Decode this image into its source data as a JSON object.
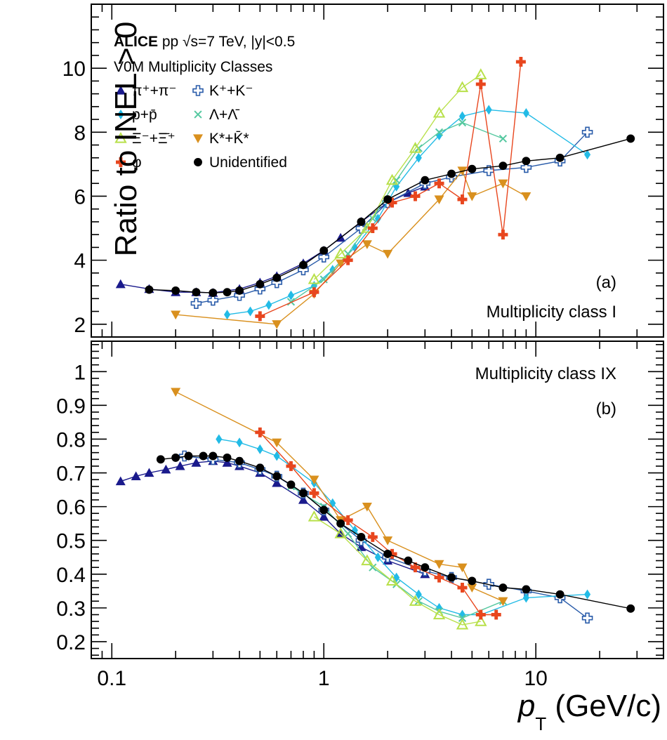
{
  "header": {
    "line1_bold": "ALICE",
    "line1_rest": " pp √s=7 TeV, |y|<0.5",
    "line2": "V0M Multiplicity Classes"
  },
  "y_axis_title": "Ratio to INEL > 0",
  "x_axis_title_p": "p",
  "x_axis_title_sub": "T",
  "x_axis_title_unit": " (GeV/c)",
  "legend": [
    {
      "label": "π⁺+π⁻",
      "color": "#1a1a8c",
      "marker": "triangle"
    },
    {
      "label": "K⁺+K⁻",
      "color": "#2a5caa",
      "marker": "open-cross"
    },
    {
      "label": "p+p̄",
      "color": "#22bbe6",
      "marker": "diamond"
    },
    {
      "label": "Λ+Λ̄",
      "color": "#55c8a0",
      "marker": "x"
    },
    {
      "label": "Ξ⁻+Ξ̄⁺",
      "color": "#b8e04a",
      "marker": "open-triangle"
    },
    {
      "label": "K*+K̄*",
      "color": "#d9901e",
      "marker": "triangle-down"
    },
    {
      "label": "φ",
      "color": "#e8461e",
      "marker": "cross"
    },
    {
      "label": "Unidentified",
      "color": "#000000",
      "marker": "circle"
    }
  ],
  "chart_data": [
    {
      "type": "scatter",
      "panel_label": "(a)",
      "class_label": "Multiplicity class I",
      "xlabel": "p_T (GeV/c)",
      "ylabel": "Ratio to INEL > 0",
      "xscale": "log",
      "xlim": [
        0.08,
        40
      ],
      "ylim": [
        1.6,
        12
      ],
      "x_ticks": [
        0.1,
        1,
        10
      ],
      "x_tick_labels": [
        "0.1",
        "1",
        "10"
      ],
      "y_ticks": [
        2,
        4,
        6,
        8,
        10
      ],
      "y_tick_labels": [
        "2",
        "4",
        "6",
        "8",
        "10"
      ],
      "series": [
        {
          "name": "π⁺+π⁻",
          "x": [
            0.11,
            0.15,
            0.2,
            0.25,
            0.3,
            0.4,
            0.5,
            0.6,
            0.8,
            1.0,
            1.2,
            1.5,
            2.0,
            2.5,
            3.0
          ],
          "y": [
            3.25,
            3.1,
            3.0,
            3.0,
            2.98,
            3.1,
            3.3,
            3.5,
            3.9,
            4.3,
            4.7,
            5.2,
            5.8,
            6.1,
            6.3
          ]
        },
        {
          "name": "K⁺+K⁻",
          "x": [
            0.25,
            0.3,
            0.4,
            0.5,
            0.6,
            0.8,
            1.0,
            1.5,
            2.0,
            3.0,
            4.0,
            6.0,
            9.0,
            13.0,
            17.5
          ],
          "y": [
            2.65,
            2.75,
            2.9,
            3.1,
            3.3,
            3.7,
            4.1,
            5.0,
            5.8,
            6.4,
            6.6,
            6.8,
            6.9,
            7.1,
            8.0
          ]
        },
        {
          "name": "p+p̄",
          "x": [
            0.35,
            0.45,
            0.55,
            0.7,
            0.9,
            1.1,
            1.4,
            1.8,
            2.2,
            2.8,
            3.5,
            4.5,
            6.0,
            9.0,
            17.5
          ],
          "y": [
            2.3,
            2.4,
            2.6,
            2.9,
            3.2,
            3.7,
            4.4,
            5.3,
            6.3,
            7.2,
            7.9,
            8.5,
            8.7,
            8.6,
            7.3
          ]
        },
        {
          "name": "Λ+Λ̄",
          "x": [
            0.7,
            1.0,
            1.3,
            1.7,
            2.2,
            2.8,
            3.5,
            4.5,
            7.0
          ],
          "y": [
            2.7,
            3.4,
            4.2,
            5.3,
            6.5,
            7.5,
            8.0,
            8.3,
            7.8
          ]
        },
        {
          "name": "Ξ⁻+Ξ̄⁺",
          "x": [
            0.9,
            1.2,
            1.6,
            2.1,
            2.7,
            3.5,
            4.5,
            5.5
          ],
          "y": [
            3.4,
            4.2,
            5.0,
            6.5,
            7.5,
            8.6,
            9.4,
            9.8
          ]
        },
        {
          "name": "K*+K̄*",
          "x": [
            0.2,
            0.6,
            0.9,
            1.2,
            1.6,
            2.0,
            3.5,
            4.5,
            5.0,
            7.0,
            9.0
          ],
          "y": [
            2.3,
            2.0,
            2.95,
            3.9,
            4.5,
            4.2,
            5.9,
            6.8,
            6.0,
            6.4,
            6.0
          ]
        },
        {
          "name": "φ",
          "x": [
            0.5,
            0.9,
            1.3,
            1.7,
            2.1,
            2.7,
            3.5,
            4.5,
            5.5,
            7.0,
            8.5
          ],
          "y": [
            2.25,
            3.0,
            4.0,
            5.0,
            5.8,
            6.0,
            6.4,
            5.9,
            9.5,
            4.8,
            10.2
          ]
        },
        {
          "name": "Unidentified",
          "x": [
            0.15,
            0.2,
            0.25,
            0.3,
            0.35,
            0.4,
            0.5,
            0.6,
            0.8,
            1.0,
            1.5,
            2.0,
            3.0,
            4.0,
            5.0,
            7.0,
            9.0,
            13.0,
            28.0
          ],
          "y": [
            3.08,
            3.05,
            3.0,
            2.98,
            3.0,
            3.05,
            3.25,
            3.45,
            3.85,
            4.3,
            5.2,
            5.9,
            6.5,
            6.7,
            6.85,
            6.95,
            7.1,
            7.2,
            7.8
          ]
        }
      ]
    },
    {
      "type": "scatter",
      "panel_label": "(b)",
      "class_label": "Multiplicity class IX",
      "xlabel": "p_T (GeV/c)",
      "ylabel": "Ratio to INEL > 0",
      "xscale": "log",
      "xlim": [
        0.08,
        40
      ],
      "ylim": [
        0.15,
        1.09
      ],
      "x_ticks": [
        0.1,
        1,
        10
      ],
      "x_tick_labels": [
        "0.1",
        "1",
        "10"
      ],
      "y_ticks": [
        0.2,
        0.3,
        0.4,
        0.5,
        0.6,
        0.7,
        0.8,
        0.9,
        1.0
      ],
      "y_tick_labels": [
        "0.2",
        "0.3",
        "0.4",
        "0.5",
        "0.6",
        "0.7",
        "0.8",
        "0.9",
        "1"
      ],
      "series": [
        {
          "name": "π⁺+π⁻",
          "x": [
            0.11,
            0.13,
            0.15,
            0.18,
            0.21,
            0.25,
            0.3,
            0.35,
            0.4,
            0.5,
            0.6,
            0.8,
            1.0,
            1.2,
            1.5,
            2.0,
            3.0
          ],
          "y": [
            0.675,
            0.69,
            0.7,
            0.71,
            0.72,
            0.73,
            0.735,
            0.73,
            0.72,
            0.7,
            0.67,
            0.62,
            0.57,
            0.52,
            0.48,
            0.44,
            0.4
          ]
        },
        {
          "name": "K⁺+K⁻",
          "x": [
            0.22,
            0.3,
            0.4,
            0.5,
            0.6,
            0.8,
            1.0,
            1.5,
            2.0,
            3.0,
            4.0,
            6.0,
            9.0,
            13.0,
            17.5
          ],
          "y": [
            0.75,
            0.74,
            0.73,
            0.71,
            0.69,
            0.64,
            0.59,
            0.5,
            0.45,
            0.41,
            0.39,
            0.37,
            0.35,
            0.33,
            0.27
          ]
        },
        {
          "name": "p+p̄",
          "x": [
            0.32,
            0.4,
            0.5,
            0.6,
            0.7,
            0.9,
            1.1,
            1.4,
            1.8,
            2.2,
            2.8,
            3.5,
            4.5,
            5.5,
            9.0,
            17.5
          ],
          "y": [
            0.8,
            0.79,
            0.77,
            0.75,
            0.72,
            0.67,
            0.61,
            0.53,
            0.45,
            0.39,
            0.34,
            0.3,
            0.28,
            0.28,
            0.33,
            0.34
          ]
        },
        {
          "name": "Λ+Λ̄",
          "x": [
            0.7,
            1.0,
            1.3,
            1.7,
            2.2,
            2.8,
            3.5,
            4.5,
            7.0
          ],
          "y": [
            0.66,
            0.6,
            0.52,
            0.42,
            0.37,
            0.32,
            0.29,
            0.27,
            0.32
          ]
        },
        {
          "name": "Ξ⁻+Ξ̄⁺",
          "x": [
            0.9,
            1.2,
            1.6,
            2.1,
            2.7,
            3.5,
            4.5,
            5.5
          ],
          "y": [
            0.57,
            0.52,
            0.44,
            0.38,
            0.32,
            0.28,
            0.25,
            0.26
          ]
        },
        {
          "name": "K*+K̄*",
          "x": [
            0.2,
            0.6,
            0.9,
            1.2,
            1.6,
            2.0,
            3.5,
            4.5,
            5.0,
            7.0
          ],
          "y": [
            0.94,
            0.79,
            0.68,
            0.56,
            0.6,
            0.5,
            0.43,
            0.42,
            0.36,
            0.32
          ]
        },
        {
          "name": "φ",
          "x": [
            0.5,
            0.7,
            0.9,
            1.3,
            1.7,
            2.1,
            2.7,
            3.5,
            4.5,
            5.5,
            6.5
          ],
          "y": [
            0.82,
            0.72,
            0.64,
            0.56,
            0.51,
            0.46,
            0.42,
            0.39,
            0.36,
            0.28,
            0.28
          ]
        },
        {
          "name": "Unidentified",
          "x": [
            0.17,
            0.2,
            0.23,
            0.27,
            0.3,
            0.35,
            0.4,
            0.5,
            0.6,
            0.7,
            0.8,
            1.0,
            1.2,
            1.5,
            2.0,
            2.5,
            3.0,
            4.0,
            5.0,
            7.0,
            9.0,
            13.0,
            28.0
          ],
          "y": [
            0.74,
            0.745,
            0.75,
            0.75,
            0.75,
            0.745,
            0.735,
            0.715,
            0.69,
            0.665,
            0.64,
            0.59,
            0.55,
            0.51,
            0.46,
            0.44,
            0.42,
            0.39,
            0.38,
            0.36,
            0.355,
            0.34,
            0.298
          ]
        }
      ]
    }
  ]
}
